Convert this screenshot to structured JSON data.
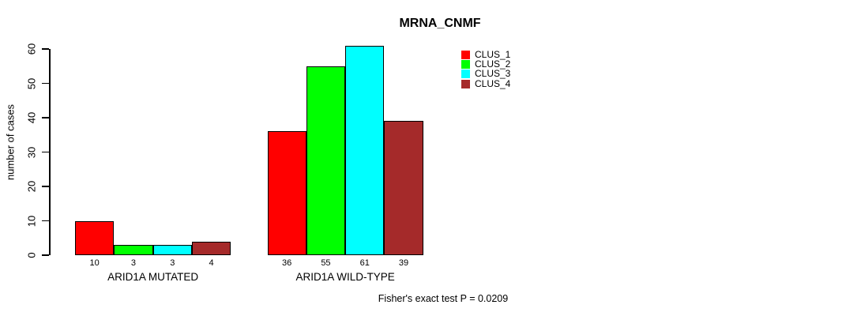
{
  "title": "MRNA_CNMF",
  "footnote": "Fisher's exact test P = 0.0209",
  "chart_data": {
    "type": "bar",
    "title": "MRNA_CNMF",
    "xlabel": "",
    "ylabel": "number of cases",
    "ylim": [
      0,
      60
    ],
    "yticks": [
      "0",
      "10",
      "20",
      "30",
      "40",
      "50",
      "60"
    ],
    "grid": false,
    "legend_position": "top-right",
    "bar_value_labels": true,
    "categories": [
      "ARID1A MUTATED",
      "ARID1A WILD-TYPE"
    ],
    "series": [
      {
        "name": "CLUS_1",
        "color": "#ff0000",
        "values": [
          10,
          36
        ]
      },
      {
        "name": "CLUS_2",
        "color": "#00ff00",
        "values": [
          3,
          55
        ]
      },
      {
        "name": "CLUS_3",
        "color": "#00ffff",
        "values": [
          3,
          61
        ]
      },
      {
        "name": "CLUS_4",
        "color": "#a52a2a",
        "values": [
          4,
          39
        ]
      }
    ],
    "annotation": "Fisher's exact test P = 0.0209"
  },
  "colors": {
    "background": "#ffffff",
    "axis": "#000000",
    "bar_border": "#000000"
  }
}
